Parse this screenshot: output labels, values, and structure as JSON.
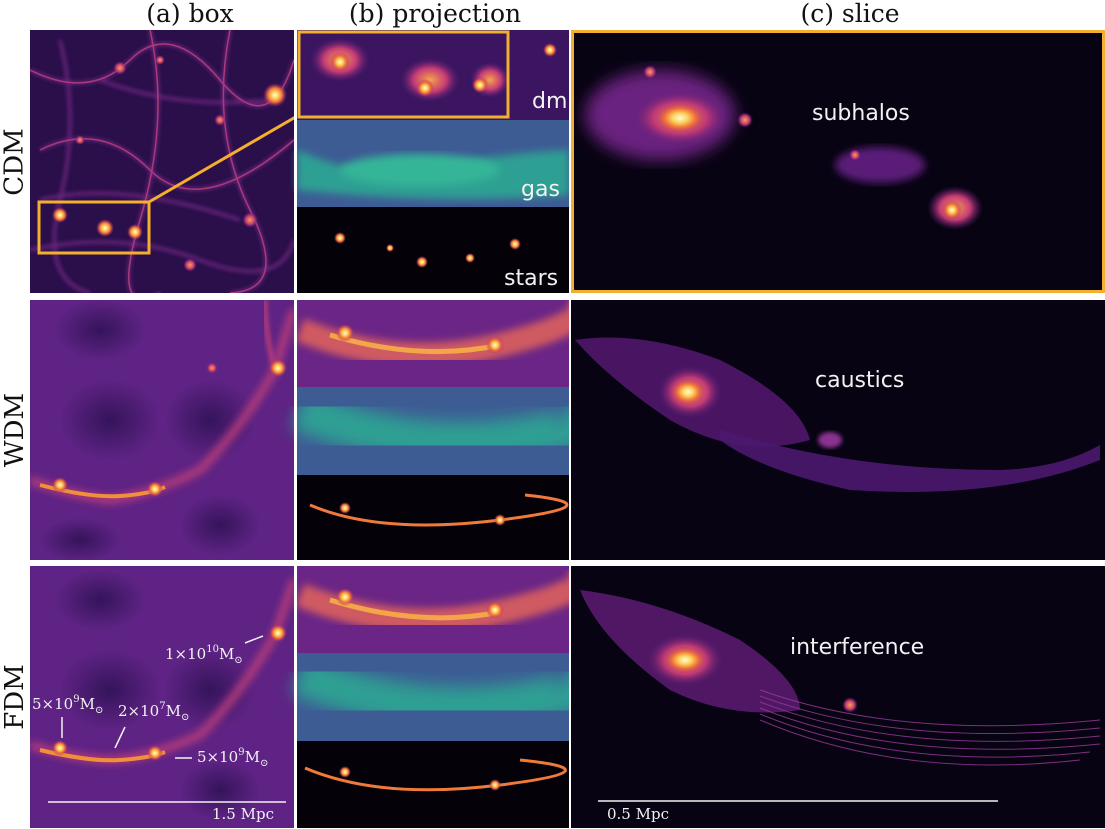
{
  "columns": {
    "box": "(a) box",
    "projection": "(b) projection",
    "slice": "(c) slice"
  },
  "rows": {
    "cdm": "CDM",
    "wdm": "WDM",
    "fdm": "FDM"
  },
  "projection_labels": {
    "dm": "dm",
    "gas": "gas",
    "stars": "stars"
  },
  "slice_labels": {
    "cdm": "subhalos",
    "wdm": "caustics",
    "fdm": "interference"
  },
  "mass_annotations": {
    "halo_a": {
      "mantissa": "1×10",
      "exp": "10",
      "unit": "M",
      "sub": "⊙"
    },
    "halo_b": {
      "mantissa": "5×10",
      "exp": "9",
      "unit": "M",
      "sub": "⊙"
    },
    "halo_c": {
      "mantissa": "2×10",
      "exp": "7",
      "unit": "M",
      "sub": "⊙"
    },
    "halo_d": {
      "mantissa": "5×10",
      "exp": "9",
      "unit": "M",
      "sub": "⊙"
    }
  },
  "scale_bars": {
    "box": "1.5 Mpc",
    "slice": "0.5 Mpc"
  },
  "colors": {
    "highlight": "#f2b02e",
    "bg_box": "#2a0f4a",
    "gas": "#2f9f93",
    "slice_bg": "#070312"
  }
}
